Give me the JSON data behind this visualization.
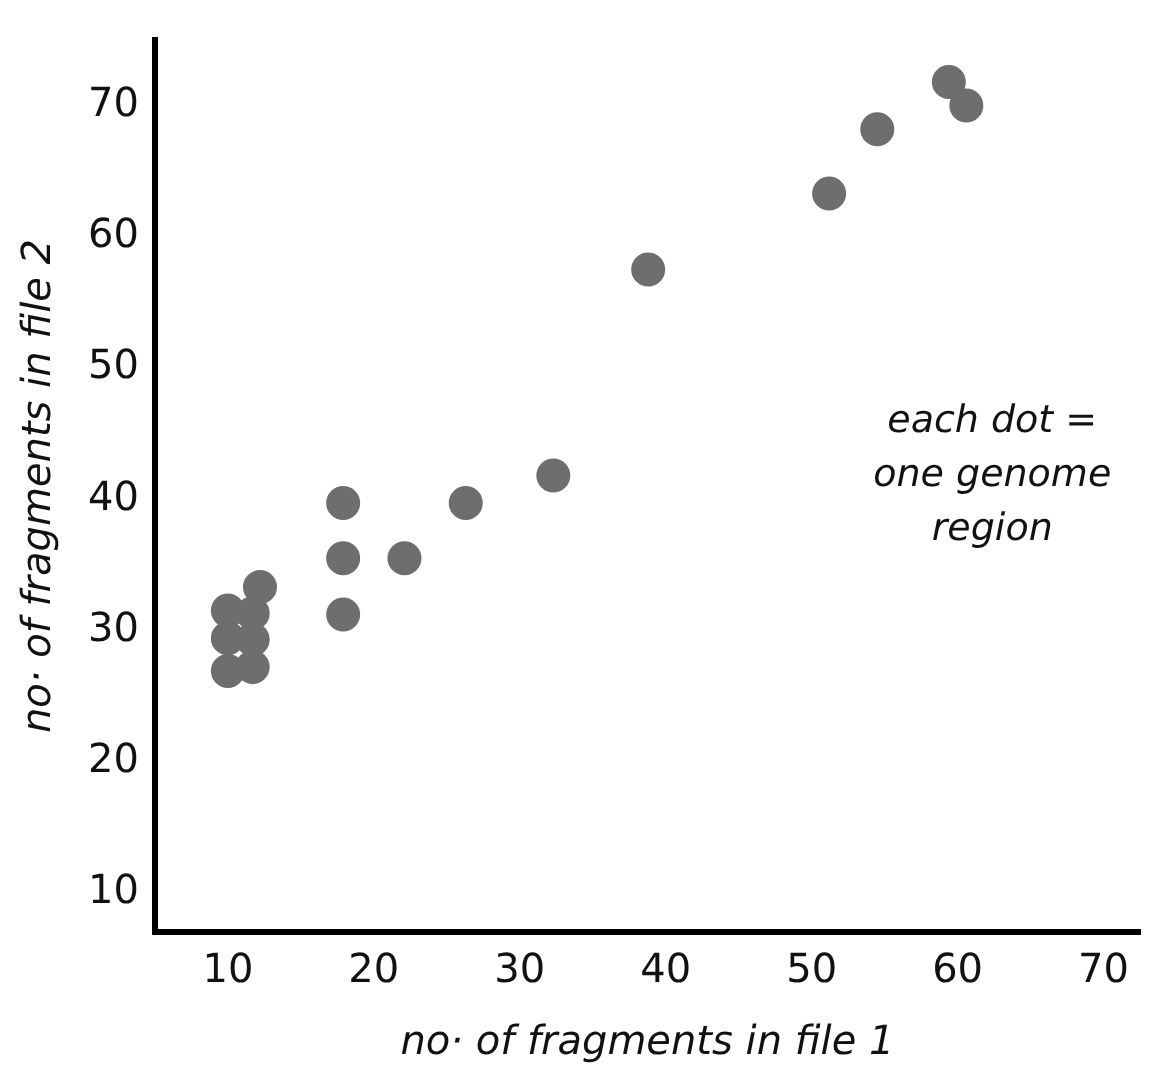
{
  "chart_data": {
    "type": "scatter",
    "xlabel": "no· of fragments in file 1",
    "ylabel": "no· of fragments in file 2",
    "x": [
      17.9,
      26.3,
      32.3,
      17.9,
      22.1,
      17.9,
      12.2,
      10,
      11.7,
      10,
      11.7,
      10,
      11.7,
      38.8,
      51.2,
      54.5,
      59.4,
      60.6
    ],
    "series": [
      {
        "color": "#6e6e6e",
        "values": [
          39.7,
          39.7,
          41.8,
          35.5,
          35.5,
          31.2,
          33.3,
          31.5,
          31.3,
          29.4,
          29.3,
          26.9,
          27.2,
          57.5,
          63.3,
          68.2,
          71.8,
          70.0
        ]
      }
    ],
    "xlim": [
      5,
      72.5
    ],
    "ylim": [
      7,
      75
    ],
    "xticks": [
      10,
      20,
      30,
      40,
      50,
      60,
      70
    ],
    "yticks": [
      10,
      20,
      30,
      40,
      50,
      60,
      70
    ],
    "annotations": [
      "each dot =\none genome\nregion"
    ],
    "grid": false,
    "legend": false,
    "marker": "circle"
  }
}
